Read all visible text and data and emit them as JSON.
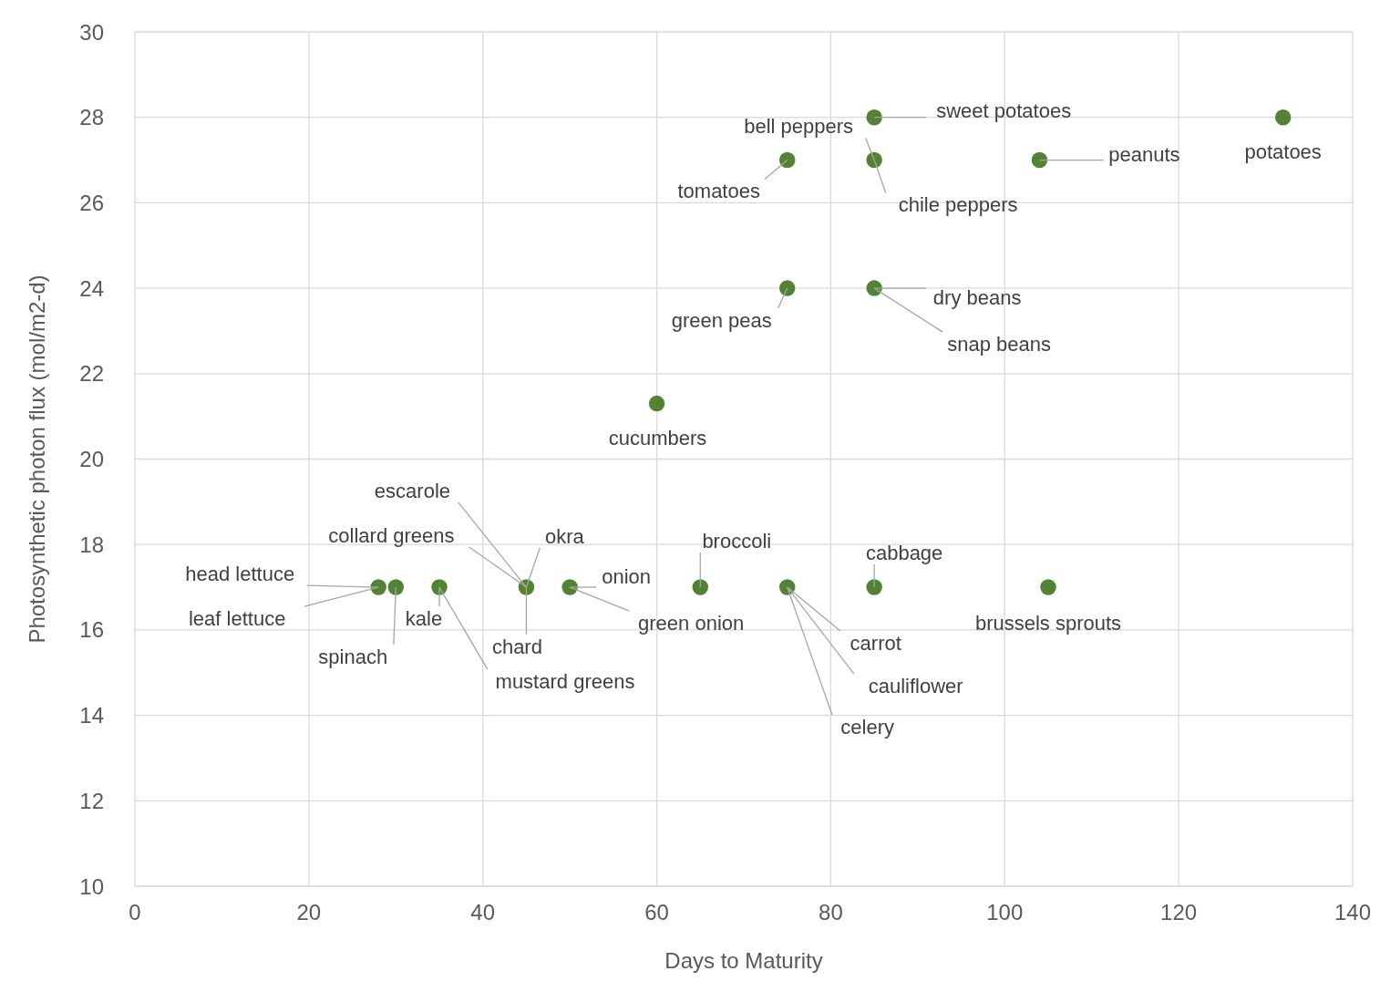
{
  "chart_data": {
    "type": "scatter",
    "xlabel": "Days to Maturity",
    "ylabel": "Photosynthetic photon flux (mol/m2-d)",
    "series": [
      {
        "color": "#548235",
        "x": [
          28,
          30,
          35,
          45,
          50,
          65,
          75,
          85,
          105,
          60,
          75,
          85,
          75,
          85,
          85,
          104,
          132
        ],
        "values": [
          17,
          17,
          17,
          17,
          17,
          17,
          17,
          17,
          17,
          21.3,
          24,
          24,
          27,
          27,
          28,
          27,
          28
        ]
      }
    ],
    "xlim": [
      0,
      140
    ],
    "xticks": [
      0,
      20,
      40,
      60,
      80,
      100,
      120,
      140
    ],
    "ylim": [
      10,
      30
    ],
    "yticks": [
      10,
      12,
      14,
      16,
      18,
      20,
      22,
      24,
      26,
      28,
      30
    ],
    "grid": true,
    "legend": false,
    "marker": "circle",
    "annotations": [
      {
        "text": "head lettuce",
        "x": 28,
        "y": 17
      },
      {
        "text": "leaf lettuce",
        "x": 28,
        "y": 17
      },
      {
        "text": "spinach",
        "x": 30,
        "y": 17
      },
      {
        "text": "kale",
        "x": 35,
        "y": 17
      },
      {
        "text": "mustard greens",
        "x": 35,
        "y": 17
      },
      {
        "text": "escarole",
        "x": 45,
        "y": 17
      },
      {
        "text": "collard greens",
        "x": 45,
        "y": 17
      },
      {
        "text": "okra",
        "x": 45,
        "y": 17
      },
      {
        "text": "chard",
        "x": 45,
        "y": 17
      },
      {
        "text": "onion",
        "x": 50,
        "y": 17
      },
      {
        "text": "green onion",
        "x": 50,
        "y": 17
      },
      {
        "text": "broccoli",
        "x": 65,
        "y": 17
      },
      {
        "text": "cabbage",
        "x": 85,
        "y": 17
      },
      {
        "text": "brussels sprouts",
        "x": 105,
        "y": 17
      },
      {
        "text": "carrot",
        "x": 75,
        "y": 17
      },
      {
        "text": "cauliflower",
        "x": 75,
        "y": 17
      },
      {
        "text": "celery",
        "x": 75,
        "y": 17
      },
      {
        "text": "cucumbers",
        "x": 60,
        "y": 21.3
      },
      {
        "text": "green peas",
        "x": 75,
        "y": 24
      },
      {
        "text": "dry beans",
        "x": 85,
        "y": 24
      },
      {
        "text": "snap beans",
        "x": 85,
        "y": 24
      },
      {
        "text": "tomatoes",
        "x": 75,
        "y": 27
      },
      {
        "text": "bell peppers",
        "x": 85,
        "y": 27
      },
      {
        "text": "chile peppers",
        "x": 85,
        "y": 27
      },
      {
        "text": "sweet potatoes",
        "x": 85,
        "y": 28
      },
      {
        "text": "peanuts",
        "x": 104,
        "y": 27
      },
      {
        "text": "potatoes",
        "x": 132,
        "y": 28
      }
    ]
  }
}
